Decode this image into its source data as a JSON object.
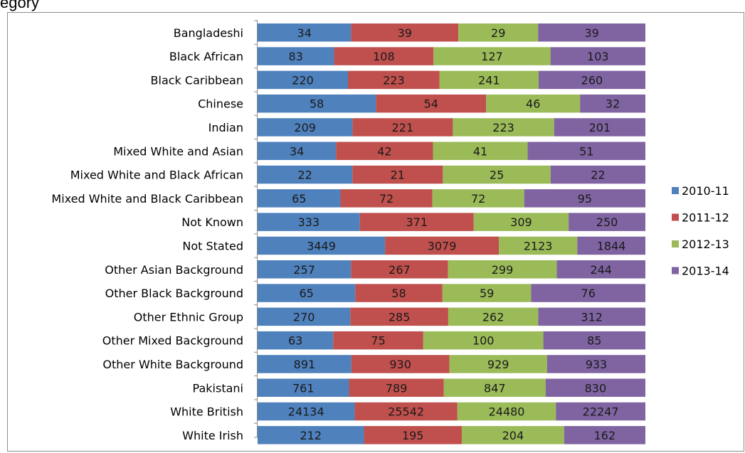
{
  "title": "egory",
  "chart_data": {
    "type": "stacked-bar-100-horizontal",
    "categories": [
      "Bangladeshi",
      "Black African",
      "Black Caribbean",
      "Chinese",
      "Indian",
      "Mixed White and Asian",
      "Mixed White and Black African",
      "Mixed White and Black Caribbean",
      "Not Known",
      "Not Stated",
      "Other Asian Background",
      "Other Black Background",
      "Other Ethnic Group",
      "Other Mixed Background",
      "Other White Background",
      "Pakistani",
      "White British",
      "White Irish"
    ],
    "series": [
      {
        "name": "2010-11",
        "color": "#4f81bd",
        "values": [
          34,
          83,
          220,
          58,
          209,
          34,
          22,
          65,
          333,
          3449,
          257,
          65,
          270,
          63,
          891,
          761,
          24134,
          212
        ]
      },
      {
        "name": "2011-12",
        "color": "#c0504d",
        "values": [
          39,
          108,
          223,
          54,
          221,
          42,
          21,
          72,
          371,
          3079,
          267,
          58,
          285,
          75,
          930,
          789,
          25542,
          195
        ]
      },
      {
        "name": "2012-13",
        "color": "#9bbb59",
        "values": [
          29,
          127,
          241,
          46,
          223,
          41,
          25,
          72,
          309,
          2123,
          299,
          59,
          262,
          100,
          929,
          847,
          24480,
          204
        ]
      },
      {
        "name": "2013-14",
        "color": "#8064a2",
        "values": [
          39,
          103,
          260,
          32,
          201,
          51,
          22,
          95,
          250,
          1844,
          244,
          76,
          312,
          85,
          933,
          830,
          22247,
          162
        ]
      }
    ],
    "legend_position": "right",
    "grid": false
  }
}
